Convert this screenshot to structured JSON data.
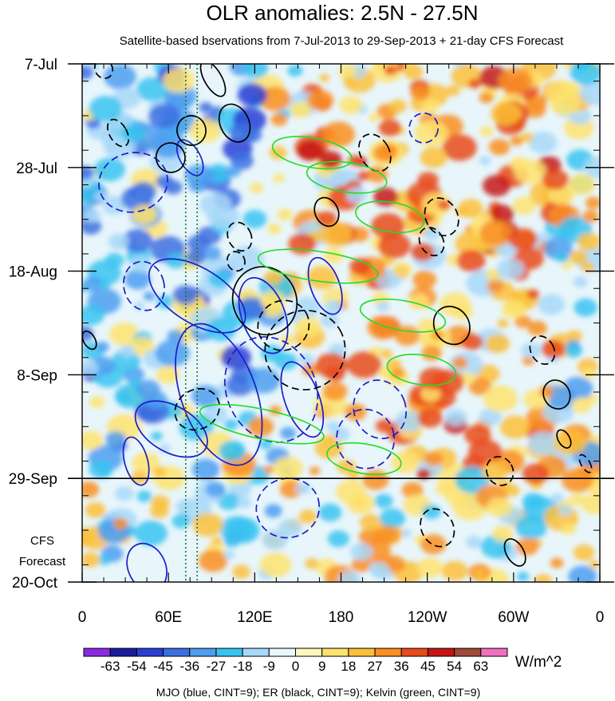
{
  "chart_data": {
    "type": "heatmap",
    "title": "OLR anomalies: 2.5N - 27.5N",
    "subtitle": "Satellite-based bservations from 7-Jul-2013 to 29-Sep-2013 + 21-day CFS Forecast",
    "x_ticks": [
      "0",
      "60E",
      "120E",
      "180",
      "120W",
      "60W",
      "0"
    ],
    "x_tick_lon": [
      0,
      60,
      120,
      180,
      240,
      300,
      360
    ],
    "y_ticks": [
      "7-Jul",
      "28-Jul",
      "18-Aug",
      "8-Sep",
      "29-Sep",
      "20-Oct"
    ],
    "y_tick_day": [
      0,
      21,
      42,
      63,
      84,
      105
    ],
    "observation_end_day": 84,
    "forecast_label": [
      "CFS",
      "Forecast"
    ],
    "dotted_lines_lon": [
      72,
      80
    ],
    "colorbar": {
      "labels": [
        "-63",
        "-54",
        "-45",
        "-36",
        "-27",
        "-18",
        "-9",
        "0",
        "9",
        "18",
        "27",
        "36",
        "45",
        "54",
        "63"
      ],
      "colors": [
        "#8a2be2",
        "#1c1c9e",
        "#2a3ed6",
        "#3c6fe0",
        "#4d9df0",
        "#38c3f0",
        "#a8d8f8",
        "#e8f8fc",
        "#fdf7be",
        "#fee36e",
        "#fbc038",
        "#f98e22",
        "#e84a1a",
        "#c61414",
        "#a04a3a",
        "#f26fc0"
      ],
      "units": "W/m^2"
    },
    "caption": "MJO (blue, CINT=9); ER (black, CINT=9); Kelvin (green, CINT=9)",
    "contour_colors": {
      "mjo": "#1c1cc8",
      "er": "#000000",
      "kelvin": "#22dd22"
    },
    "contours": {
      "mjo": [
        {
          "lon": 43.0,
          "day": 45.0,
          "a": 14,
          "b": 5,
          "rot": -14,
          "dash": true
        },
        {
          "lon": 35.5,
          "day": 24.0,
          "a": 24,
          "b": 6,
          "rot": -12,
          "dash": true
        },
        {
          "lon": 75.0,
          "day": 19.0,
          "a": 7,
          "b": 4,
          "rot": -30,
          "dash": false
        },
        {
          "lon": 95.0,
          "day": 67.0,
          "a": 26,
          "b": 15,
          "rot": -20,
          "dash": false
        },
        {
          "lon": 62.0,
          "day": 74.0,
          "a": 16,
          "b": 8,
          "rot": -60,
          "dash": false
        },
        {
          "lon": 80.0,
          "day": 47.0,
          "a": 19,
          "b": 11,
          "rot": -58,
          "dash": false
        },
        {
          "lon": 131.5,
          "day": 66.0,
          "a": 31,
          "b": 11,
          "rot": -25,
          "dash": true
        },
        {
          "lon": 126.0,
          "day": 51.0,
          "a": 15,
          "b": 8,
          "rot": -20,
          "dash": false
        },
        {
          "lon": 37.5,
          "day": 80.5,
          "a": 8,
          "b": 5,
          "rot": -15,
          "dash": false
        },
        {
          "lon": 45.0,
          "day": 102.0,
          "a": 13,
          "b": 5,
          "rot": -25,
          "dash": false
        },
        {
          "lon": 143.0,
          "day": 90.0,
          "a": 22,
          "b": 6,
          "rot": -15,
          "dash": true
        },
        {
          "lon": 153.0,
          "day": 68.0,
          "a": 12,
          "b": 8,
          "rot": -20,
          "dash": false
        },
        {
          "lon": 169.0,
          "day": 45.0,
          "a": 10,
          "b": 6,
          "rot": -20,
          "dash": false
        },
        {
          "lon": 237.5,
          "day": 13.0,
          "a": 10,
          "b": 3,
          "rot": 10,
          "dash": true
        },
        {
          "lon": 207.0,
          "day": 70.0,
          "a": 18,
          "b": 6,
          "rot": -20,
          "dash": true
        },
        {
          "lon": 197.0,
          "day": 76.0,
          "a": 20,
          "b": 6,
          "rot": -15,
          "dash": true
        }
      ],
      "er": [
        {
          "lon": 127.0,
          "day": 48.0,
          "a": 22,
          "b": 7,
          "rot": -25,
          "dash": false
        },
        {
          "lon": 155.0,
          "day": 58.0,
          "a": 28,
          "b": 8,
          "rot": -30,
          "dash": true
        },
        {
          "lon": 170.0,
          "day": 30.0,
          "a": 8,
          "b": 3,
          "rot": -25,
          "dash": false
        },
        {
          "lon": 203.5,
          "day": 18.0,
          "a": 10,
          "b": 4,
          "rot": -30,
          "dash": true
        },
        {
          "lon": 243.0,
          "day": 36.0,
          "a": 8,
          "b": 3,
          "rot": -30,
          "dash": true
        },
        {
          "lon": 257.0,
          "day": 53.0,
          "a": 12,
          "b": 4,
          "rot": -35,
          "dash": false
        },
        {
          "lon": 290.5,
          "day": 82.5,
          "a": 9,
          "b": 3,
          "rot": -30,
          "dash": true
        },
        {
          "lon": 247.0,
          "day": 94.0,
          "a": 11,
          "b": 4,
          "rot": -30,
          "dash": true
        },
        {
          "lon": 301.0,
          "day": 99.0,
          "a": 6,
          "b": 3,
          "rot": -30,
          "dash": false
        },
        {
          "lon": 320.0,
          "day": 58.0,
          "a": 8,
          "b": 3,
          "rot": -30,
          "dash": true
        },
        {
          "lon": 335.0,
          "day": 76.0,
          "a": 4,
          "b": 2,
          "rot": -30,
          "dash": false
        },
        {
          "lon": 350.0,
          "day": 81.0,
          "a": 3,
          "b": 2,
          "rot": -30,
          "dash": true
        },
        {
          "lon": 91.0,
          "day": 3.0,
          "a": 6,
          "b": 4,
          "rot": -30,
          "dash": false
        },
        {
          "lon": 25.0,
          "day": 14.0,
          "a": 6,
          "b": 3,
          "rot": -30,
          "dash": true
        },
        {
          "lon": 61.5,
          "day": 19.0,
          "a": 10,
          "b": 3,
          "rot": -25,
          "dash": false
        },
        {
          "lon": 76.0,
          "day": 13.5,
          "a": 10,
          "b": 3,
          "rot": -20,
          "dash": false
        },
        {
          "lon": 106.0,
          "day": 12.0,
          "a": 10,
          "b": 4,
          "rot": -25,
          "dash": false
        },
        {
          "lon": 109.5,
          "day": 35.0,
          "a": 8,
          "b": 3,
          "rot": -25,
          "dash": true
        },
        {
          "lon": 80.0,
          "day": 70.0,
          "a": 16,
          "b": 4,
          "rot": -30,
          "dash": true
        },
        {
          "lon": 140.0,
          "day": 53.0,
          "a": 18,
          "b": 5,
          "rot": -30,
          "dash": true
        },
        {
          "lon": 250.0,
          "day": 31.0,
          "a": 11,
          "b": 4,
          "rot": -30,
          "dash": true
        },
        {
          "lon": 330.0,
          "day": 67.0,
          "a": 9,
          "b": 3,
          "rot": -30,
          "dash": false
        },
        {
          "lon": 15.0,
          "day": 1.0,
          "a": 6,
          "b": 2,
          "rot": -30,
          "dash": true
        },
        {
          "lon": 107.0,
          "day": 40.0,
          "a": 6,
          "b": 2,
          "rot": -25,
          "dash": true
        },
        {
          "lon": 5.0,
          "day": 56.0,
          "a": 4,
          "b": 2,
          "rot": -30,
          "dash": false
        }
      ],
      "kelvin": [
        {
          "lon": 164.0,
          "day": 41.0,
          "a": 42,
          "b": 3,
          "rot": 8,
          "dash": false
        },
        {
          "lon": 160.0,
          "day": 18.0,
          "a": 28,
          "b": 3,
          "rot": 10,
          "dash": false
        },
        {
          "lon": 184.0,
          "day": 23.0,
          "a": 28,
          "b": 3,
          "rot": 8,
          "dash": false
        },
        {
          "lon": 214.0,
          "day": 31.0,
          "a": 24,
          "b": 3,
          "rot": 9,
          "dash": false
        },
        {
          "lon": 223.0,
          "day": 51.0,
          "a": 30,
          "b": 3,
          "rot": 10,
          "dash": false
        },
        {
          "lon": 125.0,
          "day": 73.0,
          "a": 44,
          "b": 3,
          "rot": 12,
          "dash": false
        },
        {
          "lon": 196.0,
          "day": 80.0,
          "a": 26,
          "b": 3,
          "rot": 9,
          "dash": false
        },
        {
          "lon": 236.0,
          "day": 62.0,
          "a": 24,
          "b": 3,
          "rot": 8,
          "dash": false
        }
      ]
    }
  }
}
